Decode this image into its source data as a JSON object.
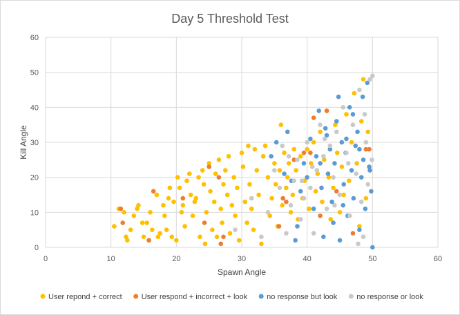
{
  "chart_data": {
    "type": "scatter",
    "title": "Day 5 Threshold Test",
    "xlabel": "Spawn Angle",
    "ylabel": "Kill Angle",
    "xlim": [
      0,
      60
    ],
    "ylim": [
      0,
      60
    ],
    "x_ticks": [
      "0",
      "10",
      "20",
      "30",
      "40",
      "50",
      "60"
    ],
    "y_ticks": [
      "0",
      "10",
      "20",
      "30",
      "40",
      "50",
      "60"
    ],
    "grid": true,
    "legend_position": "bottom",
    "series": [
      {
        "name": "User repond + correct",
        "color": "#FFC000",
        "points": [
          [
            10.5,
            6
          ],
          [
            11.2,
            11
          ],
          [
            12,
            10
          ],
          [
            12.3,
            3
          ],
          [
            12.5,
            2
          ],
          [
            13,
            5
          ],
          [
            13.5,
            9
          ],
          [
            14,
            11
          ],
          [
            14.2,
            12
          ],
          [
            14.8,
            7
          ],
          [
            15,
            3
          ],
          [
            15.5,
            7
          ],
          [
            15.8,
            2
          ],
          [
            16,
            10
          ],
          [
            16.3,
            5
          ],
          [
            16.5,
            16
          ],
          [
            17,
            15
          ],
          [
            17.2,
            3
          ],
          [
            17.5,
            4
          ],
          [
            18,
            12
          ],
          [
            18.2,
            9
          ],
          [
            18.5,
            5
          ],
          [
            18.8,
            14
          ],
          [
            19,
            17
          ],
          [
            19.3,
            3
          ],
          [
            19.6,
            13
          ],
          [
            20,
            2
          ],
          [
            20.2,
            20
          ],
          [
            20.5,
            17
          ],
          [
            20.8,
            10
          ],
          [
            21,
            12
          ],
          [
            21.3,
            6
          ],
          [
            21.6,
            19
          ],
          [
            22,
            21
          ],
          [
            22.2,
            15
          ],
          [
            22.5,
            9
          ],
          [
            22.8,
            13
          ],
          [
            23,
            14
          ],
          [
            23.4,
            20
          ],
          [
            23.6,
            3
          ],
          [
            24,
            22
          ],
          [
            24.2,
            18
          ],
          [
            24.4,
            1
          ],
          [
            24.6,
            10
          ],
          [
            25,
            24
          ],
          [
            25.2,
            16
          ],
          [
            25.5,
            5
          ],
          [
            25.8,
            13
          ],
          [
            26,
            21
          ],
          [
            26.2,
            3
          ],
          [
            26.5,
            25
          ],
          [
            26.8,
            11
          ],
          [
            27,
            7
          ],
          [
            27.2,
            18
          ],
          [
            27.5,
            22
          ],
          [
            27.8,
            15
          ],
          [
            28,
            26
          ],
          [
            28.2,
            4
          ],
          [
            28.5,
            12
          ],
          [
            28.8,
            20
          ],
          [
            29,
            9
          ],
          [
            29.3,
            17
          ],
          [
            29.6,
            2
          ],
          [
            30,
            27
          ],
          [
            30.2,
            23
          ],
          [
            30.5,
            13
          ],
          [
            30.8,
            7
          ],
          [
            31,
            29
          ],
          [
            31.2,
            18
          ],
          [
            31.5,
            11
          ],
          [
            31.8,
            5
          ],
          [
            32,
            28
          ],
          [
            32.3,
            22
          ],
          [
            32.6,
            15
          ],
          [
            33,
            1
          ],
          [
            33.3,
            26
          ],
          [
            33.6,
            29
          ],
          [
            34,
            20
          ],
          [
            34.3,
            9
          ],
          [
            34.6,
            14
          ],
          [
            35,
            24
          ],
          [
            35.2,
            18
          ],
          [
            35.5,
            6
          ],
          [
            35.8,
            22
          ],
          [
            36,
            35
          ],
          [
            36.2,
            12
          ],
          [
            36.5,
            27
          ],
          [
            36.8,
            17
          ],
          [
            37,
            20
          ],
          [
            37.2,
            24
          ],
          [
            37.5,
            10
          ],
          [
            37.8,
            15
          ],
          [
            38,
            28
          ],
          [
            38.3,
            22
          ],
          [
            38.6,
            8
          ],
          [
            39,
            26
          ],
          [
            39.3,
            14
          ],
          [
            39.6,
            19
          ],
          [
            40,
            28
          ],
          [
            40.3,
            11
          ],
          [
            40.6,
            24
          ],
          [
            41,
            30
          ],
          [
            41.3,
            16
          ],
          [
            41.6,
            21
          ],
          [
            42,
            33
          ],
          [
            42.3,
            13
          ],
          [
            42.6,
            25
          ],
          [
            43,
            39
          ],
          [
            43.3,
            20
          ],
          [
            43.6,
            8
          ],
          [
            44,
            17
          ],
          [
            44.3,
            35
          ],
          [
            44.6,
            27
          ],
          [
            45,
            10
          ],
          [
            45.3,
            23
          ],
          [
            45.6,
            15
          ],
          [
            46,
            38
          ],
          [
            46.4,
            19
          ],
          [
            46.8,
            30
          ],
          [
            47.2,
            44
          ],
          [
            47.6,
            24
          ],
          [
            48,
            6
          ],
          [
            48.3,
            36
          ],
          [
            48.6,
            48
          ],
          [
            49,
            14
          ],
          [
            49.3,
            33
          ]
        ]
      },
      {
        "name": "User respond + incorrect + look",
        "color": "#ED7D31",
        "points": [
          [
            11.5,
            11
          ],
          [
            11.8,
            7
          ],
          [
            15.8,
            2
          ],
          [
            16.5,
            16
          ],
          [
            21,
            14
          ],
          [
            24.3,
            7
          ],
          [
            25,
            23
          ],
          [
            26.5,
            20
          ],
          [
            26.8,
            1
          ],
          [
            27.2,
            3
          ],
          [
            35.7,
            6
          ],
          [
            36.3,
            14
          ],
          [
            36.8,
            13
          ],
          [
            38,
            25
          ],
          [
            39.5,
            27
          ],
          [
            40.5,
            27
          ],
          [
            41,
            37
          ],
          [
            42,
            9
          ],
          [
            43,
            39
          ],
          [
            44.5,
            16
          ],
          [
            47,
            4
          ],
          [
            49,
            28
          ],
          [
            49.5,
            28
          ]
        ]
      },
      {
        "name": "no response but look",
        "color": "#5B9BD5",
        "points": [
          [
            34.5,
            26
          ],
          [
            35.3,
            30
          ],
          [
            36.5,
            21
          ],
          [
            37,
            33
          ],
          [
            37.6,
            19
          ],
          [
            38.2,
            2
          ],
          [
            38.5,
            6
          ],
          [
            39,
            16
          ],
          [
            39.5,
            24
          ],
          [
            40,
            20
          ],
          [
            40.5,
            31
          ],
          [
            41,
            11
          ],
          [
            41.4,
            26
          ],
          [
            41.8,
            39
          ],
          [
            42.2,
            17
          ],
          [
            42.5,
            3
          ],
          [
            42.8,
            34
          ],
          [
            43.2,
            21
          ],
          [
            43.5,
            28
          ],
          [
            43.8,
            13
          ],
          [
            44.2,
            24
          ],
          [
            44.5,
            36
          ],
          [
            44.8,
            43
          ],
          [
            45,
            2
          ],
          [
            45.3,
            30
          ],
          [
            45.6,
            18
          ],
          [
            45.9,
            27
          ],
          [
            46.2,
            9
          ],
          [
            46.5,
            40
          ],
          [
            46.8,
            22
          ],
          [
            47.1,
            14
          ],
          [
            47.4,
            29
          ],
          [
            47.7,
            33
          ],
          [
            48,
            5
          ],
          [
            48.3,
            20
          ],
          [
            48.6,
            25
          ],
          [
            48.9,
            11
          ],
          [
            49.2,
            47
          ],
          [
            49.5,
            23
          ],
          [
            49.8,
            16
          ],
          [
            50,
            0
          ],
          [
            48.5,
            43
          ],
          [
            47,
            38
          ],
          [
            46,
            31
          ],
          [
            45.5,
            12
          ],
          [
            44,
            7
          ],
          [
            43,
            32
          ],
          [
            42,
            24
          ],
          [
            48,
            28
          ],
          [
            49.6,
            22
          ]
        ]
      },
      {
        "name": "no response or look",
        "color": "#C9C9C9",
        "points": [
          [
            29,
            5
          ],
          [
            31.5,
            14
          ],
          [
            33,
            3
          ],
          [
            34,
            10
          ],
          [
            35,
            22
          ],
          [
            35.8,
            17
          ],
          [
            36.2,
            29
          ],
          [
            36.8,
            4
          ],
          [
            37.5,
            12
          ],
          [
            38,
            19
          ],
          [
            38.5,
            25
          ],
          [
            39,
            8
          ],
          [
            39.5,
            14
          ],
          [
            40,
            30
          ],
          [
            40.5,
            17
          ],
          [
            41,
            4
          ],
          [
            41.5,
            22
          ],
          [
            42,
            35
          ],
          [
            42.5,
            26
          ],
          [
            43,
            11
          ],
          [
            43.5,
            29
          ],
          [
            44,
            20
          ],
          [
            44.5,
            33
          ],
          [
            45,
            15
          ],
          [
            45.5,
            40
          ],
          [
            46,
            27
          ],
          [
            46.5,
            9
          ],
          [
            47,
            35
          ],
          [
            47.5,
            21
          ],
          [
            48,
            45
          ],
          [
            48.3,
            13
          ],
          [
            48.6,
            3
          ],
          [
            49,
            30
          ],
          [
            49.3,
            18
          ],
          [
            49.6,
            48
          ],
          [
            49.9,
            25
          ],
          [
            48.8,
            38
          ],
          [
            47.8,
            1
          ],
          [
            46.3,
            24
          ],
          [
            44.2,
            12
          ],
          [
            42.7,
            31
          ],
          [
            40.8,
            23
          ],
          [
            39.2,
            19
          ],
          [
            37.2,
            26
          ],
          [
            50,
            49
          ]
        ]
      }
    ]
  }
}
